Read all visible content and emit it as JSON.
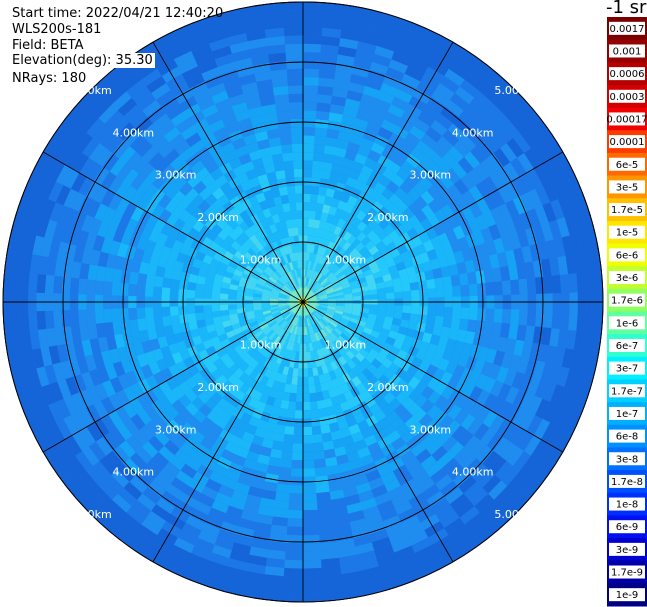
{
  "header": {
    "start_time": "Start time: 2022/04/21 12:40:20",
    "station": "WLS200s-181",
    "field": "Field: BETA",
    "elevation": "Elevation(deg): 35.30",
    "nrays": "NRays: 180"
  },
  "chart_data": {
    "type": "heatmap",
    "projection": "polar (PPI)",
    "field": "BETA",
    "elevation_deg": 35.3,
    "n_rays": 180,
    "range_rings_km": [
      1.0,
      2.0,
      3.0,
      4.0,
      5.0
    ],
    "ring_labels": [
      "1.00km",
      "2.00km",
      "3.00km",
      "4.00km",
      "5.00km"
    ],
    "spokes_deg": [
      0,
      30,
      60,
      90,
      120,
      150,
      180,
      210,
      240,
      270,
      300,
      330
    ],
    "max_range_km": 5.0,
    "colorbar": {
      "unit": "-1 sr",
      "labels": [
        "0.0017",
        "0.001",
        "0.0006",
        "0.0003",
        "0.00017",
        "0.0001",
        "6e-5",
        "3e-5",
        "1.7e-5",
        "1e-5",
        "6e-6",
        "3e-6",
        "1.7e-6",
        "1e-6",
        "6e-7",
        "3e-7",
        "1.7e-7",
        "1e-7",
        "6e-8",
        "3e-8",
        "1.7e-8",
        "1e-8",
        "6e-9",
        "3e-9",
        "1.7e-9",
        "1e-9"
      ],
      "colors": [
        "#7a0000",
        "#960000",
        "#b40000",
        "#d20000",
        "#f00000",
        "#ff3c00",
        "#ff6a00",
        "#ff9600",
        "#ffc000",
        "#ffe600",
        "#f0ff00",
        "#c0ff30",
        "#90ff60",
        "#60ffa0",
        "#30ffd0",
        "#00f0ff",
        "#00d0ff",
        "#00b0ff",
        "#0090ff",
        "#0070ff",
        "#0050ff",
        "#0030ff",
        "#0010f0",
        "#0000d0",
        "#0000a8",
        "#000080"
      ]
    }
  }
}
